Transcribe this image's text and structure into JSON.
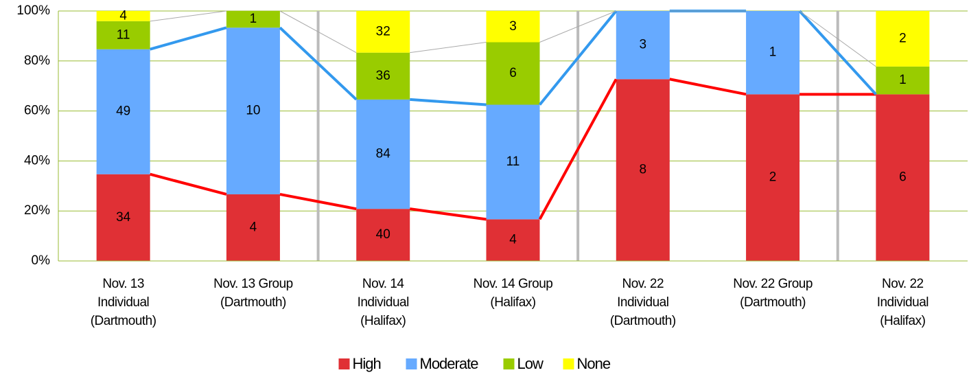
{
  "chart_data": {
    "type": "bar",
    "percent_stacked": true,
    "categories": [
      "Nov. 13\nIndividual\n(Dartmouth)",
      "Nov. 13 Group\n(Dartmouth)",
      "Nov. 14\nIndividual\n(Halifax)",
      "Nov. 14 Group\n(Halifax)",
      "Nov. 22\nIndividual\n(Dartmouth)",
      "Nov. 22 Group\n(Dartmouth)",
      "Nov. 22\nIndividual\n(Halifax)"
    ],
    "series": [
      {
        "name": "High",
        "color": "#e03035",
        "values": [
          34,
          4,
          40,
          4,
          8,
          2,
          6
        ]
      },
      {
        "name": "Moderate",
        "color": "#66aaff",
        "values": [
          49,
          10,
          84,
          11,
          3,
          1,
          null
        ]
      },
      {
        "name": "Low",
        "color": "#99cc00",
        "values": [
          11,
          1,
          36,
          6,
          null,
          null,
          1
        ]
      },
      {
        "name": "None",
        "color": "#ffff00",
        "values": [
          4,
          null,
          32,
          3,
          null,
          null,
          2
        ]
      }
    ],
    "ylim": [
      0,
      100
    ],
    "yticks": [
      {
        "value": 0,
        "label": "0%"
      },
      {
        "value": 20,
        "label": "20%"
      },
      {
        "value": 40,
        "label": "40%"
      },
      {
        "value": 60,
        "label": "60%"
      },
      {
        "value": 80,
        "label": "80%"
      },
      {
        "value": 100,
        "label": "100%"
      }
    ],
    "grid": true,
    "legend": "bottom"
  }
}
